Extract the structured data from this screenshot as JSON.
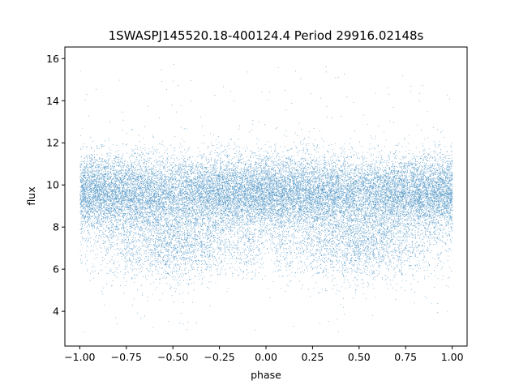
{
  "chart_data": {
    "type": "scatter",
    "title": "1SWASPJ145520.18-400124.4 Period 29916.02148s",
    "xlabel": "phase",
    "ylabel": "flux",
    "xlim": [
      -1.08,
      1.08
    ],
    "ylim": [
      2.35,
      16.55
    ],
    "xticks": [
      -1.0,
      -0.75,
      -0.5,
      -0.25,
      0.0,
      0.25,
      0.5,
      0.75,
      1.0
    ],
    "xtick_labels": [
      "−1.00",
      "−0.75",
      "−0.50",
      "−0.25",
      "0.00",
      "0.25",
      "0.50",
      "0.75",
      "1.00"
    ],
    "yticks": [
      4,
      6,
      8,
      10,
      12,
      14,
      16
    ],
    "ytick_labels": [
      "4",
      "6",
      "8",
      "10",
      "12",
      "14",
      "16"
    ],
    "grid": false,
    "legend": "none",
    "marker_color": "#1f77b4",
    "series": [
      {
        "description_points": "dense phase-folded light curve, x in [-1,1]",
        "baseline_flux": 9.6,
        "baseline_spread": 0.9,
        "eclipse_centers": [
          -0.5,
          0.5
        ],
        "eclipse_min_flux": 6.2,
        "secondary_dip_centers": [
          -0.1,
          0.1
        ],
        "outlier_range": [
          3.0,
          15.9
        ]
      }
    ]
  }
}
